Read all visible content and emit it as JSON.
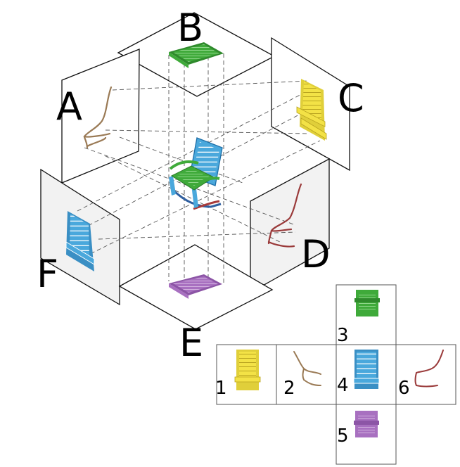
{
  "projection_labels": {
    "A": "A",
    "B": "B",
    "C": "C",
    "D": "D",
    "E": "E",
    "F": "F"
  },
  "net_labels": {
    "n1": "1",
    "n2": "2",
    "n3": "3",
    "n4": "4",
    "n5": "5",
    "n6": "6"
  },
  "colors": {
    "yellow_view": "#f3e246",
    "brown_view": "#9a7a55",
    "green_view": "#3faa3a",
    "blue_view": "#4aa8dc",
    "purple_view": "#a870c0",
    "red_view": "#9a3a3a"
  }
}
